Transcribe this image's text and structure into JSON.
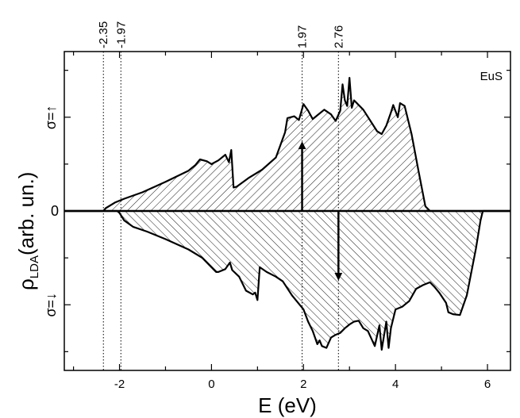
{
  "chart_data": {
    "type": "area",
    "title": "",
    "annotation": "EuS",
    "xlabel": "E (eV)",
    "ylabel_main": "ρ",
    "ylabel_sub": "LDA",
    "ylabel_unit": "(arb. un.)",
    "y_group_labels": {
      "up": "σ=↑",
      "down": "σ=↓",
      "zero": "0"
    },
    "xlim": [
      -3.2,
      6.5
    ],
    "ylim": [
      -1.7,
      1.7
    ],
    "x_ticks": [
      -2,
      0,
      2,
      4,
      6
    ],
    "x_tick_labels": [
      "-2",
      "0",
      "2",
      "4",
      "6"
    ],
    "y_ticks": [
      -1,
      0,
      1
    ],
    "vlines": [
      {
        "x": -2.35,
        "label": "-2.35"
      },
      {
        "x": -1.97,
        "label": "-1.97"
      },
      {
        "x": 1.97,
        "label": "1.97"
      },
      {
        "x": 2.76,
        "label": "2.76"
      }
    ],
    "arrows": [
      {
        "x": 1.97,
        "y_from": 0.0,
        "y_to": 0.7,
        "direction": "up"
      },
      {
        "x": 2.76,
        "y_from": 0.0,
        "y_to": -0.7,
        "direction": "down"
      }
    ],
    "series": [
      {
        "name": "σ=↑",
        "x": [
          -3.2,
          -2.4,
          -2.35,
          -2.3,
          -2.1,
          -1.9,
          -1.5,
          -1.0,
          -0.5,
          -0.35,
          -0.25,
          -0.1,
          0.0,
          0.15,
          0.3,
          0.38,
          0.43,
          0.48,
          0.55,
          0.8,
          1.1,
          1.4,
          1.6,
          1.65,
          1.8,
          1.9,
          2.0,
          2.1,
          2.2,
          2.3,
          2.45,
          2.6,
          2.7,
          2.8,
          2.85,
          2.9,
          2.95,
          3.0,
          3.05,
          3.1,
          3.3,
          3.6,
          3.7,
          3.8,
          3.9,
          3.95,
          4.05,
          4.1,
          4.2,
          4.35,
          4.5,
          4.65,
          4.75,
          6.5
        ],
        "y": [
          0,
          0,
          0,
          0.03,
          0.09,
          0.13,
          0.2,
          0.31,
          0.43,
          0.49,
          0.55,
          0.53,
          0.5,
          0.54,
          0.6,
          0.52,
          0.65,
          0.25,
          0.26,
          0.35,
          0.44,
          0.57,
          0.84,
          0.99,
          1.01,
          0.97,
          1.14,
          1.07,
          0.98,
          1.02,
          1.08,
          1.03,
          0.96,
          1.07,
          1.35,
          1.18,
          1.12,
          1.42,
          1.1,
          1.18,
          1.08,
          0.85,
          0.82,
          0.91,
          1.05,
          1.13,
          1.0,
          1.15,
          1.12,
          0.82,
          0.43,
          0.05,
          0,
          0
        ]
      },
      {
        "name": "σ=↓",
        "x": [
          -3.2,
          -2.05,
          -2.0,
          -1.9,
          -1.7,
          -1.4,
          -1.0,
          -0.5,
          -0.2,
          0.1,
          0.15,
          0.3,
          0.4,
          0.45,
          0.6,
          0.75,
          0.9,
          0.95,
          1.0,
          1.05,
          1.2,
          1.4,
          1.55,
          1.75,
          2.0,
          2.1,
          2.2,
          2.3,
          2.35,
          2.4,
          2.5,
          2.6,
          2.7,
          2.8,
          2.9,
          3.0,
          3.1,
          3.2,
          3.3,
          3.4,
          3.55,
          3.65,
          3.7,
          3.8,
          3.85,
          3.9,
          4.0,
          4.15,
          4.3,
          4.45,
          4.6,
          4.75,
          4.85,
          4.95,
          5.1,
          5.15,
          5.25,
          5.4,
          5.55,
          5.75,
          5.85,
          5.9,
          6.5
        ],
        "y": [
          0,
          0,
          -0.02,
          -0.1,
          -0.17,
          -0.22,
          -0.3,
          -0.41,
          -0.5,
          -0.65,
          -0.65,
          -0.62,
          -0.55,
          -0.63,
          -0.7,
          -0.85,
          -0.89,
          -0.87,
          -0.95,
          -0.6,
          -0.65,
          -0.7,
          -0.75,
          -0.9,
          -1.05,
          -1.18,
          -1.28,
          -1.42,
          -1.38,
          -1.44,
          -1.46,
          -1.35,
          -1.32,
          -1.3,
          -1.25,
          -1.21,
          -1.18,
          -1.17,
          -1.25,
          -1.28,
          -1.44,
          -1.22,
          -1.48,
          -1.18,
          -1.46,
          -1.25,
          -1.05,
          -1.02,
          -0.96,
          -0.83,
          -0.79,
          -0.76,
          -0.81,
          -0.87,
          -0.98,
          -1.08,
          -1.1,
          -1.11,
          -0.9,
          -0.4,
          -0.1,
          0,
          0
        ]
      }
    ]
  }
}
